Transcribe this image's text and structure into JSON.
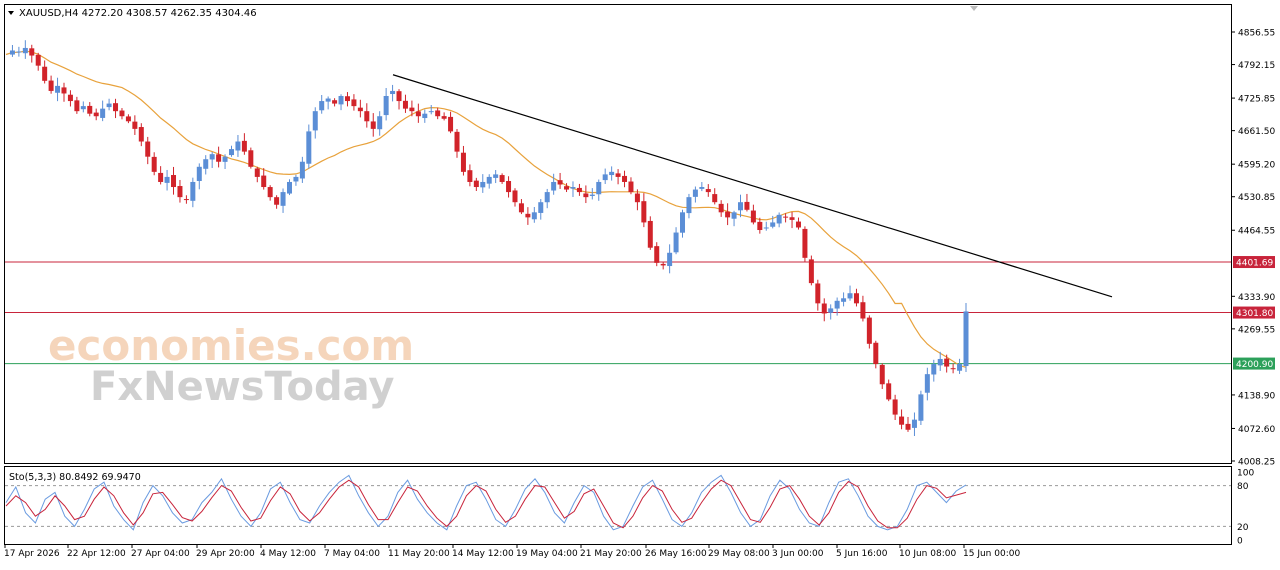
{
  "window": {
    "symbol_header": "XAUUSD,H4  4272.20 4308.57 4262.35 4304.46"
  },
  "watermark": {
    "line1": "economies.com",
    "line2": "FxNewsToday"
  },
  "colors": {
    "bull": "#5b8ed6",
    "bear": "#d1232a",
    "ma": "#e8a23c",
    "trendline": "#000000",
    "resistance": "#c8243b",
    "support": "#2ca05a",
    "stoch_main": "#6a9be0",
    "stoch_signal": "#c8243b"
  },
  "chart_data": [
    {
      "type": "candlestick",
      "ylim": [
        4008.25,
        4880
      ],
      "y_ticks": [
        "4856.55",
        "4792.15",
        "4725.85",
        "4661.50",
        "4595.20",
        "4530.85",
        "4464.55",
        "4401.69",
        "4333.90",
        "4301.80",
        "4269.55",
        "4200.90",
        "4138.90",
        "4072.60",
        "4008.25"
      ],
      "x_ticks": [
        "17 Apr 2026",
        "22 Apr 12:00",
        "27 Apr 04:00",
        "29 Apr 20:00",
        "4 May 12:00",
        "7 May 04:00",
        "11 May 20:00",
        "14 May 12:00",
        "19 May 04:00",
        "21 May 20:00",
        "26 May 16:00",
        "29 May 08:00",
        "3 Jun 00:00",
        "5 Jun 16:00",
        "10 Jun 08:00",
        "15 Jun 00:00"
      ],
      "series": [
        {
          "kind": "ohlc",
          "close_path": [
            4812,
            4820,
            4818,
            4825,
            4810,
            4790,
            4760,
            4740,
            4750,
            4735,
            4720,
            4700,
            4710,
            4695,
            4690,
            4705,
            4715,
            4700,
            4690,
            4680,
            4665,
            4640,
            4610,
            4580,
            4560,
            4570,
            4550,
            4530,
            4525,
            4560,
            4590,
            4605,
            4615,
            4600,
            4610,
            4625,
            4640,
            4620,
            4590,
            4570,
            4550,
            4530,
            4515,
            4540,
            4560,
            4570,
            4600,
            4660,
            4700,
            4720,
            4725,
            4715,
            4730,
            4720,
            4710,
            4700,
            4680,
            4665,
            4690,
            4730,
            4740,
            4720,
            4705,
            4700,
            4690,
            4695,
            4700,
            4690,
            4685,
            4660,
            4620,
            4580,
            4560,
            4550,
            4560,
            4570,
            4575,
            4560,
            4540,
            4520,
            4500,
            4490,
            4500,
            4520,
            4540,
            4560,
            4555,
            4545,
            4550,
            4540,
            4530,
            4535,
            4560,
            4575,
            4580,
            4570,
            4560,
            4540,
            4520,
            4480,
            4430,
            4400,
            4395,
            4420,
            4460,
            4500,
            4530,
            4545,
            4550,
            4540,
            4520,
            4500,
            4490,
            4500,
            4520,
            4505,
            4480,
            4465,
            4470,
            4480,
            4495,
            4490,
            4485,
            4470,
            4410,
            4360,
            4320,
            4300,
            4310,
            4325,
            4330,
            4340,
            4320,
            4290,
            4240,
            4200,
            4160,
            4130,
            4100,
            4080,
            4070,
            4090,
            4140,
            4180,
            4200,
            4210,
            4195,
            4190,
            4200,
            4304
          ]
        },
        {
          "kind": "line",
          "name": "",
          "values_start": 4790,
          "values_end": 4304
        },
        {
          "kind": "trendline",
          "from": {
            "x": "11 May 20:00",
            "y": 4772
          },
          "to": {
            "x": "15 Jun 12:00",
            "y": 4333
          }
        }
      ],
      "levels": [
        {
          "value": "4401.69",
          "kind": "resistance"
        },
        {
          "value": "4301.80",
          "kind": "resistance"
        },
        {
          "value": "4200.90",
          "kind": "support"
        }
      ]
    },
    {
      "type": "line",
      "title": "Sto(5,3,3) 80.8492 69.9470",
      "ylim": [
        0,
        100
      ],
      "y_ticks": [
        "100",
        "80",
        "20",
        "0"
      ],
      "levels": [
        80,
        20
      ],
      "series": [
        {
          "name": "",
          "values": [
            55,
            78,
            40,
            25,
            60,
            70,
            35,
            20,
            45,
            75,
            85,
            50,
            30,
            15,
            55,
            80,
            65,
            40,
            25,
            30,
            55,
            70,
            90,
            60,
            35,
            20,
            40,
            75,
            85,
            55,
            30,
            25,
            50,
            70,
            85,
            95,
            65,
            40,
            20,
            35,
            70,
            88,
            60,
            40,
            25,
            15,
            50,
            80,
            85,
            60,
            30,
            20,
            45,
            75,
            90,
            70,
            40,
            25,
            55,
            80,
            70,
            35,
            15,
            20,
            50,
            78,
            88,
            60,
            30,
            20,
            40,
            70,
            85,
            95,
            70,
            40,
            20,
            30,
            65,
            88,
            75,
            45,
            25,
            20,
            55,
            85,
            90,
            65,
            35,
            20,
            15,
            20,
            45,
            80,
            85,
            70,
            55,
            72,
            81
          ]
        },
        {
          "name": "",
          "values": [
            50,
            65,
            55,
            35,
            45,
            65,
            50,
            30,
            35,
            60,
            78,
            65,
            40,
            22,
            40,
            68,
            70,
            52,
            33,
            28,
            42,
            62,
            80,
            72,
            48,
            28,
            32,
            58,
            78,
            68,
            42,
            28,
            40,
            60,
            78,
            88,
            78,
            52,
            30,
            30,
            55,
            78,
            72,
            50,
            32,
            20,
            35,
            65,
            80,
            72,
            45,
            26,
            35,
            60,
            80,
            78,
            55,
            32,
            42,
            68,
            75,
            50,
            25,
            18,
            35,
            62,
            80,
            72,
            45,
            26,
            32,
            55,
            75,
            88,
            80,
            55,
            30,
            26,
            48,
            75,
            80,
            60,
            35,
            22,
            40,
            70,
            86,
            78,
            50,
            28,
            18,
            18,
            32,
            60,
            80,
            76,
            62,
            66,
            70
          ]
        }
      ]
    }
  ]
}
